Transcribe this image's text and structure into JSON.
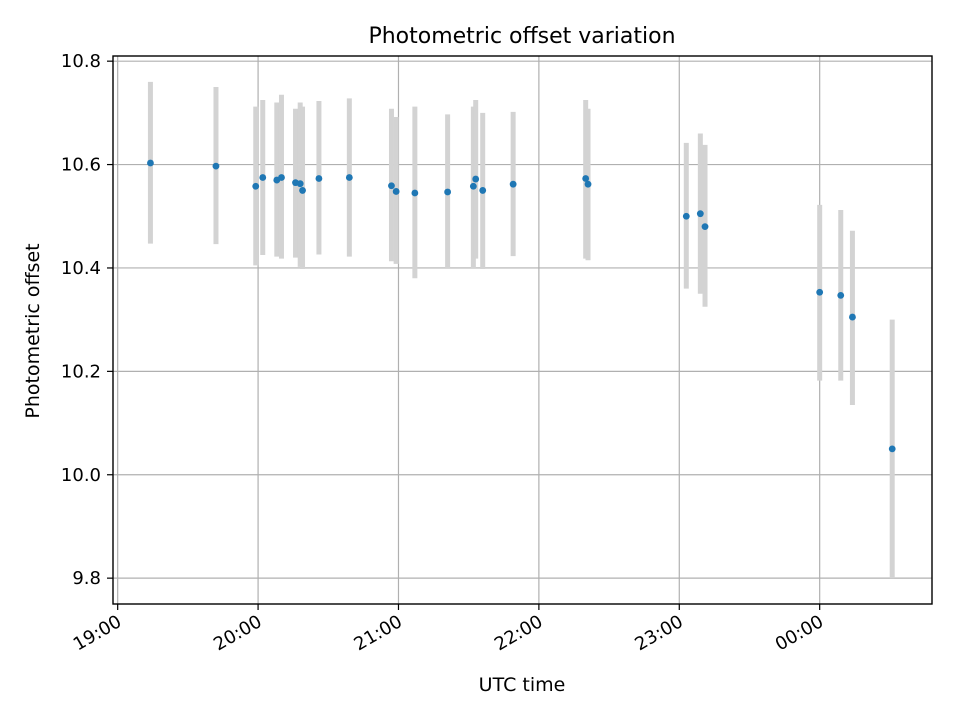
{
  "chart_data": {
    "type": "scatter",
    "title": "Photometric offset variation",
    "xlabel": "UTC time",
    "ylabel": "Photometric offset",
    "grid": true,
    "x_reference_date": null,
    "xlim": [
      "18:58",
      "00:48"
    ],
    "ylim": [
      9.75,
      10.81
    ],
    "x_ticks": [
      "19:00",
      "20:00",
      "21:00",
      "22:00",
      "23:00",
      "00:00"
    ],
    "y_ticks": [
      "9.8",
      "10.0",
      "10.2",
      "10.4",
      "10.6",
      "10.8"
    ],
    "marker_color": "#1f77b4",
    "errorbar_color": "#d3d3d3",
    "series": [
      {
        "points": [
          {
            "x": "19:14",
            "y": 10.603,
            "ylow": 10.447,
            "yhigh": 10.76
          },
          {
            "x": "19:42",
            "y": 10.597,
            "ylow": 10.446,
            "yhigh": 10.75
          },
          {
            "x": "19:59",
            "y": 10.558,
            "ylow": 10.405,
            "yhigh": 10.712
          },
          {
            "x": "20:02",
            "y": 10.575,
            "ylow": 10.425,
            "yhigh": 10.725
          },
          {
            "x": "20:08",
            "y": 10.57,
            "ylow": 10.422,
            "yhigh": 10.72
          },
          {
            "x": "20:10",
            "y": 10.575,
            "ylow": 10.418,
            "yhigh": 10.735
          },
          {
            "x": "20:16",
            "y": 10.565,
            "ylow": 10.42,
            "yhigh": 10.708
          },
          {
            "x": "20:18",
            "y": 10.563,
            "ylow": 10.402,
            "yhigh": 10.72
          },
          {
            "x": "20:19",
            "y": 10.55,
            "ylow": 10.398,
            "yhigh": 10.712
          },
          {
            "x": "20:26",
            "y": 10.573,
            "ylow": 10.426,
            "yhigh": 10.723
          },
          {
            "x": "20:39",
            "y": 10.575,
            "ylow": 10.422,
            "yhigh": 10.728
          },
          {
            "x": "20:57",
            "y": 10.559,
            "ylow": 10.413,
            "yhigh": 10.708
          },
          {
            "x": "20:59",
            "y": 10.548,
            "ylow": 10.408,
            "yhigh": 10.692
          },
          {
            "x": "21:07",
            "y": 10.545,
            "ylow": 10.38,
            "yhigh": 10.712
          },
          {
            "x": "21:21",
            "y": 10.547,
            "ylow": 10.4,
            "yhigh": 10.697
          },
          {
            "x": "21:32",
            "y": 10.558,
            "ylow": 10.4,
            "yhigh": 10.712
          },
          {
            "x": "21:33",
            "y": 10.572,
            "ylow": 10.418,
            "yhigh": 10.725
          },
          {
            "x": "21:36",
            "y": 10.55,
            "ylow": 10.398,
            "yhigh": 10.7
          },
          {
            "x": "21:49",
            "y": 10.562,
            "ylow": 10.423,
            "yhigh": 10.702
          },
          {
            "x": "22:20",
            "y": 10.573,
            "ylow": 10.418,
            "yhigh": 10.725
          },
          {
            "x": "22:21",
            "y": 10.562,
            "ylow": 10.415,
            "yhigh": 10.708
          },
          {
            "x": "23:03",
            "y": 10.5,
            "ylow": 10.36,
            "yhigh": 10.642
          },
          {
            "x": "23:09",
            "y": 10.505,
            "ylow": 10.35,
            "yhigh": 10.66
          },
          {
            "x": "23:11",
            "y": 10.48,
            "ylow": 10.325,
            "yhigh": 10.638
          },
          {
            "x": "00:00",
            "y": 10.353,
            "ylow": 10.182,
            "yhigh": 10.522
          },
          {
            "x": "00:09",
            "y": 10.347,
            "ylow": 10.182,
            "yhigh": 10.512
          },
          {
            "x": "00:14",
            "y": 10.305,
            "ylow": 10.135,
            "yhigh": 10.472
          },
          {
            "x": "00:31",
            "y": 10.05,
            "ylow": 9.8,
            "yhigh": 10.3
          }
        ]
      }
    ]
  }
}
